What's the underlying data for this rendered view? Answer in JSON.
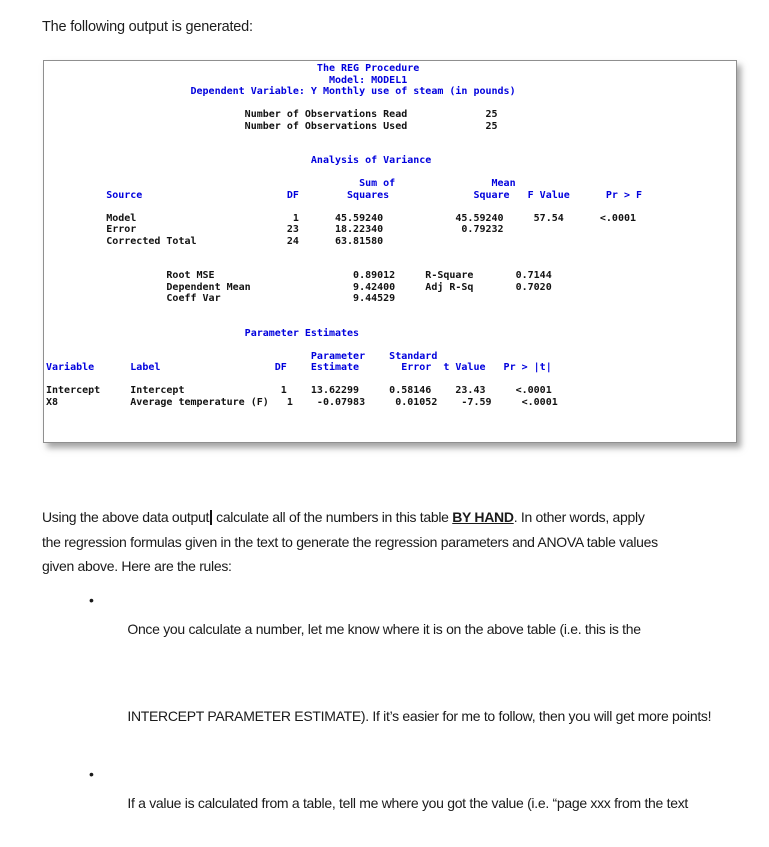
{
  "intro": "The following output is generated:",
  "colors": {
    "sas_blue": "#0000dd",
    "sas_black": "#121212",
    "body_text": "#1a1a1a"
  },
  "sas": {
    "titles": {
      "procedure": "The REG Procedure",
      "model": "Model: MODEL1",
      "dependent_variable": "Dependent Variable: Y Monthly use of steam (in pounds)"
    },
    "tables": {
      "observations": [
        {
          "label": "Number of Observations Read",
          "value": "25"
        },
        {
          "label": "Number of Observations Used",
          "value": "25"
        }
      ],
      "analysis_of_variance": {
        "title": "Analysis of Variance",
        "columns": [
          "Source",
          "DF",
          "Sum of Squares",
          "Mean Square",
          "F Value",
          "Pr > F"
        ],
        "rows": [
          [
            "Model",
            "1",
            "45.59240",
            "45.59240",
            "57.54",
            "<.0001"
          ],
          [
            "Error",
            "23",
            "18.22340",
            "0.79232",
            "",
            ""
          ],
          [
            "Corrected Total",
            "24",
            "63.81580",
            "",
            "",
            ""
          ]
        ]
      },
      "fit_statistics": {
        "root_mse": "0.89012",
        "dependent_mean": "9.42400",
        "coeff_var": "9.44529",
        "r_square": "0.7144",
        "adj_r_sq": "0.7020"
      },
      "parameter_estimates": {
        "title": "Parameter Estimates",
        "columns": [
          "Variable",
          "Label",
          "DF",
          "Parameter Estimate",
          "Standard Error",
          "t Value",
          "Pr > |t|"
        ],
        "rows": [
          [
            "Intercept",
            "Intercept",
            "1",
            "13.62299",
            "0.58146",
            "23.43",
            "<.0001"
          ],
          [
            "X8",
            "Average temperature (F)",
            "1",
            "-0.07983",
            "0.01052",
            "-7.59",
            "<.0001"
          ]
        ]
      }
    },
    "lines": [
      "                                             The REG Procedure",
      "                                               Model: MODEL1",
      "                        Dependent Variable: Y Monthly use of steam (in pounds)",
      "",
      "                                 Number of Observations Read             25",
      "                                 Number of Observations Used             25",
      "",
      "",
      "                                            Analysis of Variance",
      "",
      "                                                    Sum of                Mean",
      "          Source                        DF        Squares              Square   F Value      Pr > F",
      "",
      "          Model                          1      45.59240            45.59240     57.54      <.0001",
      "          Error                         23      18.22340             0.79232",
      "          Corrected Total               24      63.81580",
      "",
      "",
      "                    Root MSE                       0.89012     R-Square       0.7144",
      "                    Dependent Mean                 9.42400     Adj R-Sq       0.7020",
      "                    Coeff Var                      9.44529",
      "",
      "",
      "                                 Parameter Estimates",
      "",
      "                                            Parameter    Standard",
      "Variable      Label                   DF    Estimate       Error  t Value   Pr > |t|",
      "",
      "Intercept     Intercept                1    13.62299     0.58146    23.43     <.0001",
      "X8            Average temperature (F)   1    -0.07983     0.01052    -7.59     <.0001"
    ]
  },
  "paragraph": {
    "line1_pre": "Using the above data output",
    "line1_mid": " calculate all of the numbers in this table ",
    "by_hand": "BY HAND",
    "line1_tail": ". In other words, apply",
    "line2": "the regression formulas given in the text to generate the regression parameters and ANOVA table values",
    "line3": "given above. Here are the rules:"
  },
  "bullets": {
    "glyph": "•",
    "items": [
      {
        "lines": [
          "Once you calculate a number, let me know where it is on the above table (i.e. this is the",
          "INTERCEPT PARAMETER ESTIMATE). If it’s easier for me to follow, then you will get more points!"
        ]
      },
      {
        "lines": [
          "If a value is calculated from a table, tell me where you got the value (i.e. “page xxx from the text"
        ]
      }
    ]
  }
}
